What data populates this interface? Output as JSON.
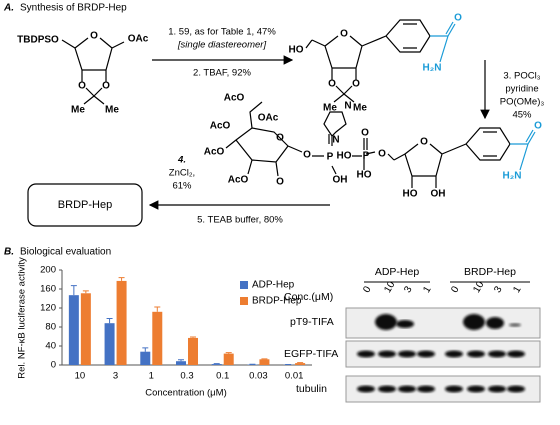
{
  "scheme": {
    "label": "A.",
    "title": "Synthesis of BRDP-Hep",
    "step_right": [
      "1. 59, as for Table 1, 47%",
      "[single diastereomer]",
      "2. TBAF, 92%"
    ],
    "step_down": [
      "3. POCl₃",
      "pyridine",
      "PO(OMe)₃",
      "45%"
    ],
    "step_left": [
      "4.",
      "ZnCl₂,",
      "61%",
      "5. TEAB buffer, 80%"
    ],
    "product": "BRDP-Hep",
    "start_labels": [
      "TBDPSO",
      "OAc",
      "O",
      "O",
      "O",
      "Me",
      "Me"
    ],
    "intermediate_labels": [
      "HO",
      "O",
      "O",
      "O",
      "Me",
      "Me",
      "O",
      "H₂N"
    ],
    "phosphate_labels": [
      "O",
      "HO",
      "P",
      "O",
      "HO",
      "O",
      "HO",
      "OH",
      "O",
      "H₂N"
    ],
    "reagent_labels": [
      "AcO",
      "AcO",
      "OAc",
      "AcO",
      "AcO",
      "O",
      "O",
      "O",
      "P",
      "N",
      "N",
      "OH"
    ]
  },
  "panel_b": {
    "label": "B.",
    "title": "Biological evaluation"
  },
  "chart_data": {
    "type": "bar",
    "ylabel": "Rel. NF-κB luciferase activity",
    "xlabel": "Concentration (μM)",
    "categories": [
      "10",
      "3",
      "1",
      "0.3",
      "0.1",
      "0.03",
      "0.01"
    ],
    "series": [
      {
        "name": "ADP-Hep",
        "color": "#4472c4",
        "values": [
          147,
          88,
          28,
          8,
          2,
          1,
          0.5
        ],
        "errors": [
          20,
          10,
          8,
          3,
          1,
          0.5,
          0.5
        ]
      },
      {
        "name": "BRDP-Hep",
        "color": "#ed7d31",
        "values": [
          151,
          177,
          112,
          57,
          24,
          12,
          4
        ],
        "errors": [
          5,
          7,
          10,
          2,
          2,
          1,
          1
        ]
      }
    ],
    "ylim": [
      0,
      200
    ],
    "yticks": [
      0,
      40,
      80,
      120,
      160,
      200
    ]
  },
  "blot": {
    "groups": [
      "ADP-Hep",
      "BRDP-Hep"
    ],
    "conc_label": "Conc.(μM)",
    "lanes": [
      "0",
      "10",
      "3",
      "1",
      "0",
      "10",
      "3",
      "1"
    ],
    "rows": [
      "pT9-TIFA",
      "EGFP-TIFA",
      "tubulin"
    ]
  }
}
